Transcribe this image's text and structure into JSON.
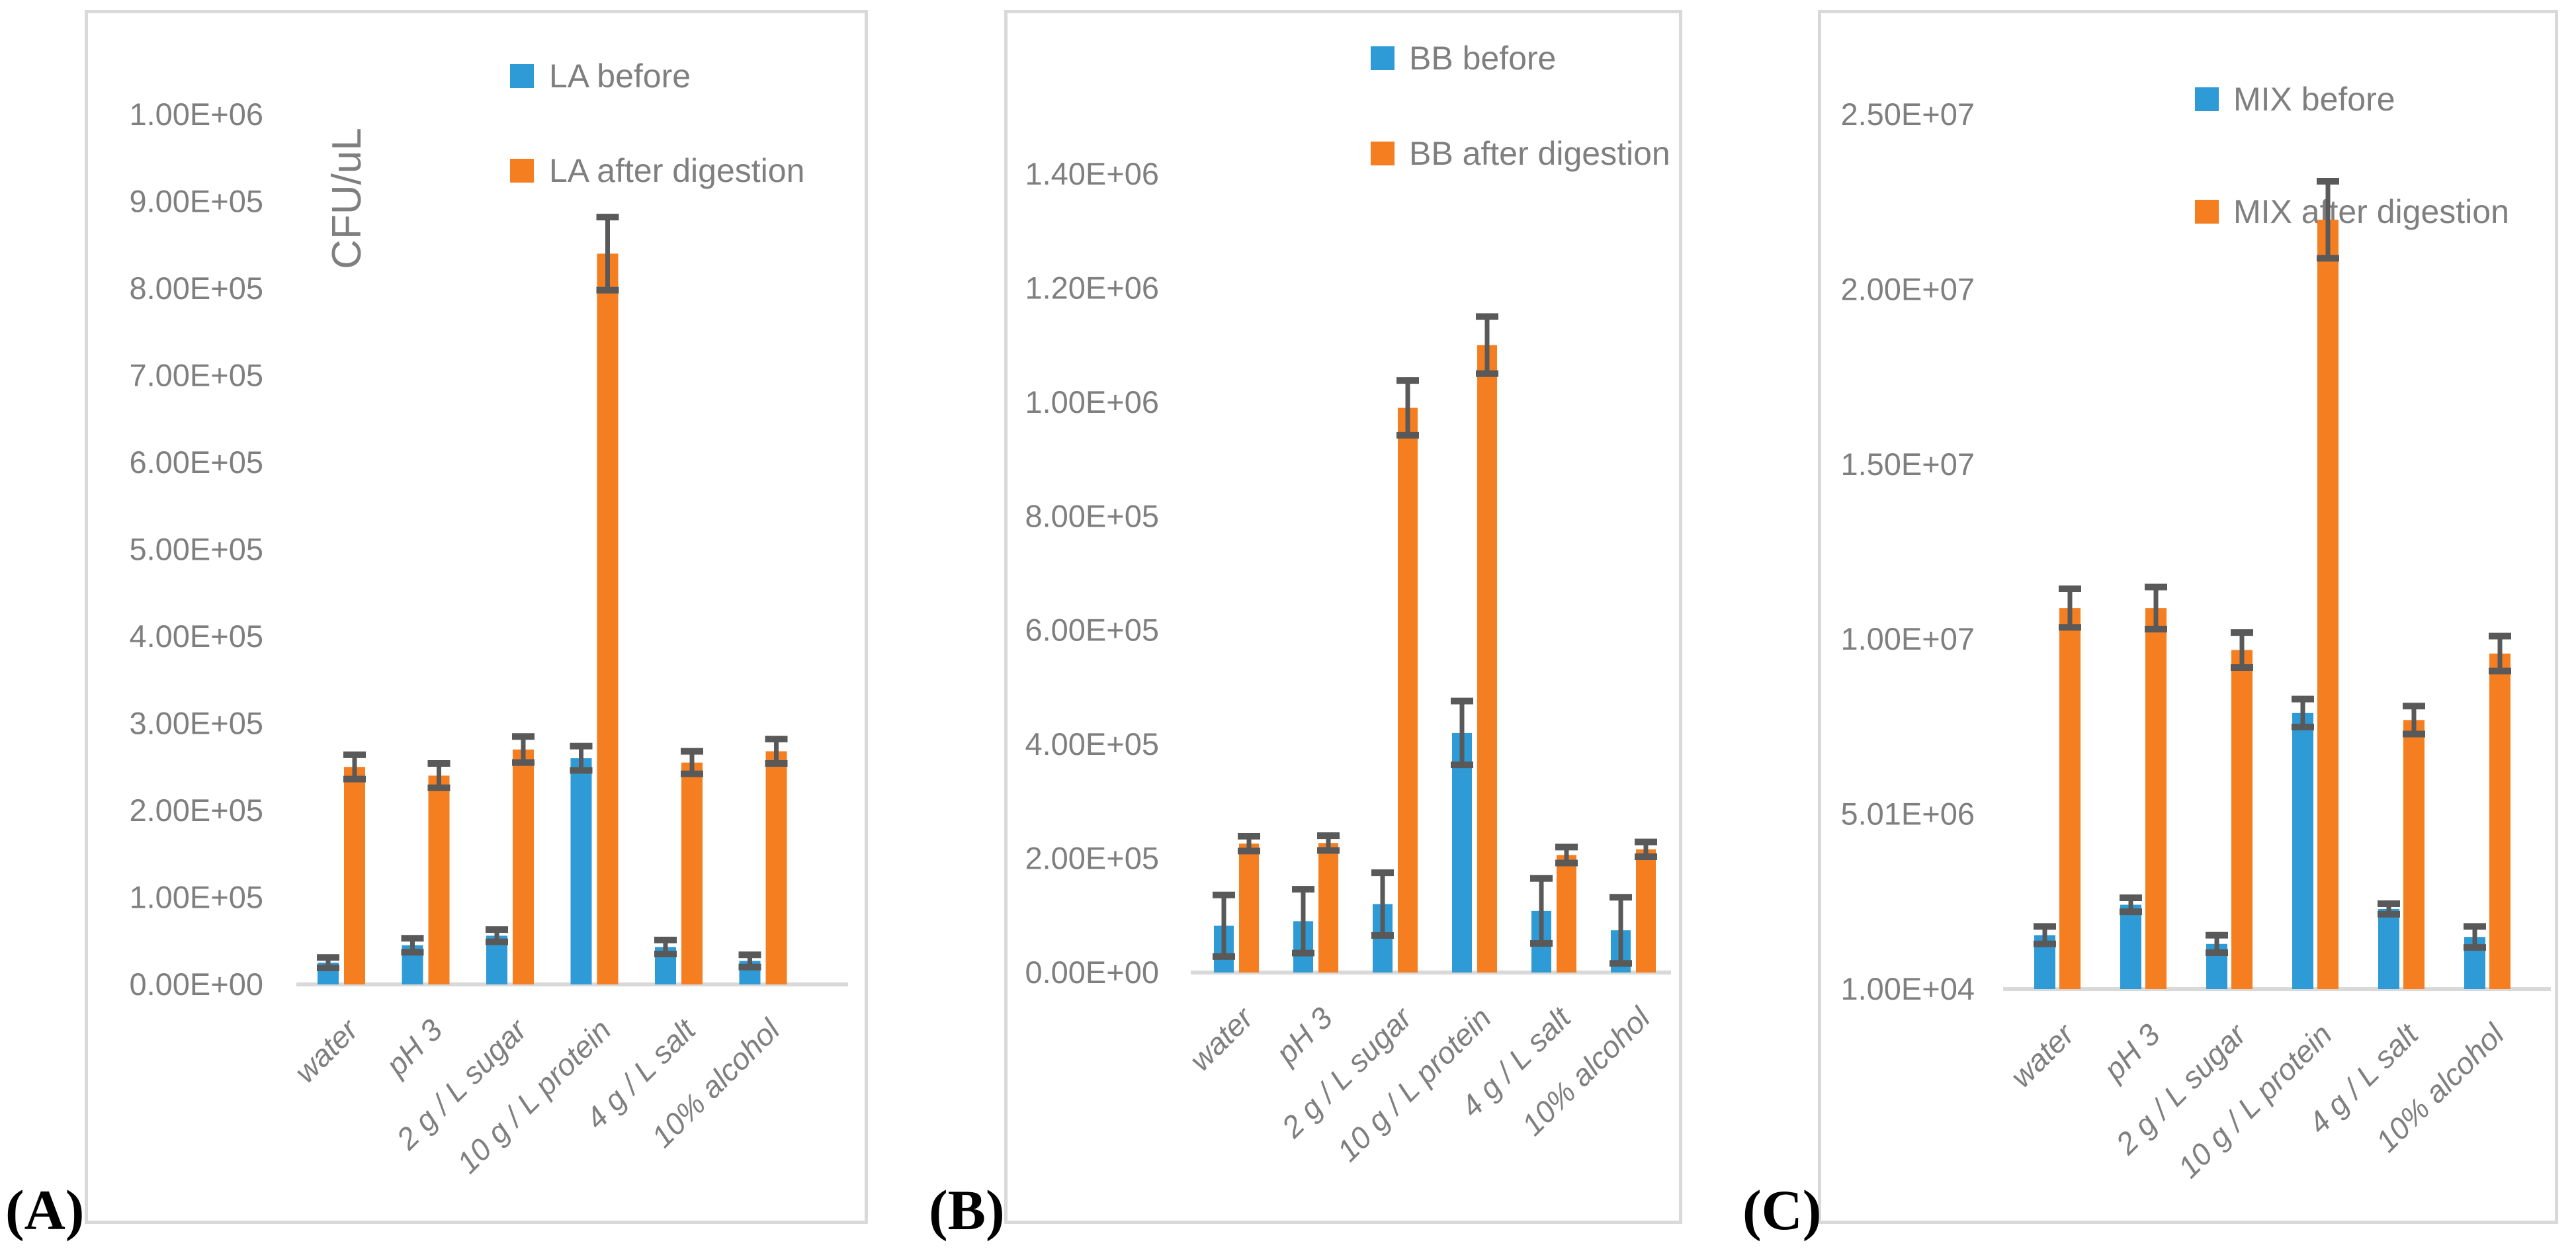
{
  "colors": {
    "before_series": "#2E9BD6",
    "after_series": "#F57E20",
    "error_bar": "#595959",
    "axis_text": "#7F7F7F",
    "axis_line": "#D9D9D9",
    "panel_border": "#D9D9D9",
    "panel_letter": "#000000"
  },
  "chart_data": [
    {
      "type": "bar",
      "panel_label": "(A)",
      "y_axis": {
        "title": "CFU/uL",
        "min": 0,
        "max": 1000000,
        "ticks": [
          {
            "label": "0.00E+00",
            "value": 0
          },
          {
            "label": "1.00E+05",
            "value": 100000
          },
          {
            "label": "2.00E+05",
            "value": 200000
          },
          {
            "label": "3.00E+05",
            "value": 300000
          },
          {
            "label": "4.00E+05",
            "value": 400000
          },
          {
            "label": "5.00E+05",
            "value": 500000
          },
          {
            "label": "6.00E+05",
            "value": 600000
          },
          {
            "label": "7.00E+05",
            "value": 700000
          },
          {
            "label": "8.00E+05",
            "value": 800000
          },
          {
            "label": "9.00E+05",
            "value": 900000
          },
          {
            "label": "1.00E+06",
            "value": 1000000
          }
        ]
      },
      "categories": [
        "water",
        "pH 3",
        "2 g / L sugar",
        "10 g / L protein",
        "4 g / L salt",
        "10% alcohol"
      ],
      "series": [
        {
          "name": "LA before",
          "color_key": "before_series",
          "values": [
            25000,
            45000,
            56000,
            260000,
            43000,
            27000
          ],
          "errors": [
            6000,
            8000,
            7000,
            14000,
            8000,
            7000
          ]
        },
        {
          "name": "LA after digestion",
          "color_key": "after_series",
          "values": [
            250000,
            240000,
            270000,
            840000,
            255000,
            268000
          ],
          "errors": [
            14000,
            14000,
            15000,
            42000,
            13000,
            14000
          ]
        }
      ],
      "legend_position": "top-right",
      "grid": false
    },
    {
      "type": "bar",
      "panel_label": "(B)",
      "y_axis": {
        "title": "",
        "min": 0,
        "max": 1400000,
        "ticks": [
          {
            "label": "0.00E+00",
            "value": 0
          },
          {
            "label": "2.00E+05",
            "value": 200000
          },
          {
            "label": "4.00E+05",
            "value": 400000
          },
          {
            "label": "6.00E+05",
            "value": 600000
          },
          {
            "label": "8.00E+05",
            "value": 800000
          },
          {
            "label": "1.00E+06",
            "value": 1000000
          },
          {
            "label": "1.20E+06",
            "value": 1200000
          },
          {
            "label": "1.40E+06",
            "value": 1400000
          }
        ]
      },
      "categories": [
        "water",
        "pH 3",
        "2 g / L sugar",
        "10 g / L protein",
        "4 g / L salt",
        "10% alcohol"
      ],
      "series": [
        {
          "name": "BB before",
          "color_key": "before_series",
          "values": [
            82000,
            90000,
            120000,
            420000,
            108000,
            74000
          ],
          "errors": [
            54000,
            56000,
            55000,
            56000,
            57000,
            58000
          ]
        },
        {
          "name": "BB after digestion",
          "color_key": "after_series",
          "values": [
            226000,
            227000,
            990000,
            1100000,
            206000,
            216000
          ],
          "errors": [
            13000,
            13000,
            48000,
            50000,
            14000,
            13000
          ]
        }
      ],
      "legend_position": "top-right",
      "grid": false
    },
    {
      "type": "bar",
      "panel_label": "(C)",
      "y_axis": {
        "title": "",
        "min": 10000,
        "max": 25010000,
        "ticks": [
          {
            "label": "1.00E+04",
            "value": 10000
          },
          {
            "label": "5.01E+06",
            "value": 5010000
          },
          {
            "label": "1.00E+07",
            "value": 10010000
          },
          {
            "label": "1.50E+07",
            "value": 15010000
          },
          {
            "label": "2.00E+07",
            "value": 20010000
          },
          {
            "label": "2.50E+07",
            "value": 25010000
          }
        ]
      },
      "categories": [
        "water",
        "pH 3",
        "2 g / L sugar",
        "10 g / L protein",
        "4 g / L salt",
        "10% alcohol"
      ],
      "series": [
        {
          "name": "MIX before",
          "color_key": "before_series",
          "values": [
            1550000,
            2420000,
            1300000,
            7900000,
            2300000,
            1500000
          ],
          "errors": [
            250000,
            200000,
            250000,
            400000,
            150000,
            300000
          ]
        },
        {
          "name": "MIX after digestion",
          "color_key": "after_series",
          "values": [
            10900000,
            10900000,
            9700000,
            22000000,
            7700000,
            9600000
          ],
          "errors": [
            550000,
            600000,
            500000,
            1100000,
            400000,
            500000
          ]
        }
      ],
      "legend_position": "top-right",
      "grid": false
    }
  ]
}
